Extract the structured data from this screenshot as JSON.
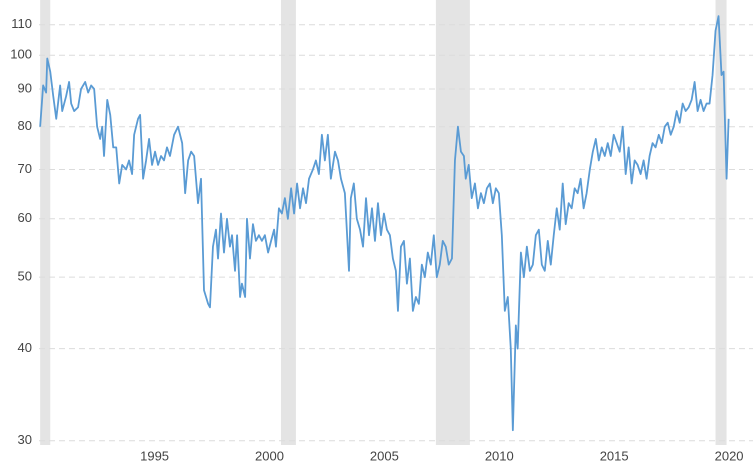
{
  "chart_data": {
    "type": "line",
    "log_scale": true,
    "grid": true,
    "color": "#5a9bd4",
    "shade_color": "#e4e4e4",
    "xlim": [
      1990.6,
      2020.8
    ],
    "ylim": [
      29.6,
      117
    ],
    "xticks": [
      1995,
      2000,
      2005,
      2010,
      2015,
      2020
    ],
    "yticks": [
      30,
      40,
      50,
      60,
      70,
      80,
      90,
      100,
      110
    ],
    "shaded": [
      [
        1990.65,
        1991.09
      ],
      [
        2001.13,
        2001.78
      ],
      [
        2007.87,
        2009.35
      ],
      [
        2020.04,
        2020.52
      ]
    ],
    "x": [
      1990.65,
      1990.78,
      1990.91,
      1990.96,
      1991.09,
      1991.22,
      1991.35,
      1991.52,
      1991.61,
      1991.78,
      1991.91,
      1992.0,
      1992.13,
      1992.3,
      1992.43,
      1992.61,
      1992.74,
      1992.87,
      1993.0,
      1993.13,
      1993.26,
      1993.35,
      1993.43,
      1993.57,
      1993.7,
      1993.83,
      1993.96,
      1994.09,
      1994.22,
      1994.39,
      1994.52,
      1994.65,
      1994.74,
      1994.91,
      1995.0,
      1995.13,
      1995.26,
      1995.39,
      1995.52,
      1995.65,
      1995.78,
      1995.91,
      1996.04,
      1996.17,
      1996.3,
      1996.48,
      1996.65,
      1996.83,
      1996.96,
      1997.09,
      1997.22,
      1997.35,
      1997.52,
      1997.65,
      1997.78,
      1997.96,
      1998.04,
      1998.17,
      1998.3,
      1998.39,
      1998.52,
      1998.65,
      1998.78,
      1998.91,
      1999.0,
      1999.13,
      1999.22,
      1999.35,
      1999.43,
      1999.57,
      1999.65,
      1999.78,
      1999.91,
      2000.04,
      2000.17,
      2000.3,
      2000.43,
      2000.57,
      2000.7,
      2000.83,
      2000.91,
      2001.04,
      2001.17,
      2001.3,
      2001.43,
      2001.57,
      2001.7,
      2001.83,
      2001.96,
      2002.09,
      2002.22,
      2002.35,
      2002.52,
      2002.65,
      2002.78,
      2002.91,
      2003.04,
      2003.17,
      2003.3,
      2003.48,
      2003.61,
      2003.74,
      2003.91,
      2004.09,
      2004.17,
      2004.3,
      2004.43,
      2004.57,
      2004.7,
      2004.83,
      2004.96,
      2005.09,
      2005.22,
      2005.35,
      2005.48,
      2005.61,
      2005.74,
      2005.87,
      2006.0,
      2006.13,
      2006.22,
      2006.35,
      2006.48,
      2006.61,
      2006.74,
      2006.87,
      2007.0,
      2007.13,
      2007.26,
      2007.39,
      2007.52,
      2007.65,
      2007.78,
      2007.91,
      2008.04,
      2008.17,
      2008.3,
      2008.43,
      2008.57,
      2008.7,
      2008.83,
      2008.96,
      2009.09,
      2009.17,
      2009.3,
      2009.43,
      2009.57,
      2009.7,
      2009.83,
      2009.96,
      2010.09,
      2010.22,
      2010.35,
      2010.48,
      2010.61,
      2010.74,
      2010.87,
      2011.0,
      2011.13,
      2011.22,
      2011.35,
      2011.43,
      2011.57,
      2011.7,
      2011.83,
      2011.96,
      2012.09,
      2012.22,
      2012.35,
      2012.48,
      2012.61,
      2012.74,
      2012.87,
      2013.0,
      2013.13,
      2013.26,
      2013.39,
      2013.52,
      2013.65,
      2013.78,
      2013.91,
      2014.04,
      2014.17,
      2014.3,
      2014.43,
      2014.57,
      2014.7,
      2014.83,
      2014.96,
      2015.09,
      2015.22,
      2015.35,
      2015.48,
      2015.61,
      2015.74,
      2015.87,
      2016.0,
      2016.13,
      2016.26,
      2016.39,
      2016.52,
      2016.65,
      2016.78,
      2016.91,
      2017.04,
      2017.17,
      2017.3,
      2017.43,
      2017.57,
      2017.7,
      2017.83,
      2017.96,
      2018.09,
      2018.22,
      2018.35,
      2018.48,
      2018.61,
      2018.74,
      2018.87,
      2019.0,
      2019.13,
      2019.26,
      2019.39,
      2019.52,
      2019.65,
      2019.78,
      2019.91,
      2020.04,
      2020.17,
      2020.3,
      2020.39,
      2020.52,
      2020.61
    ],
    "values": [
      80,
      91,
      89,
      99,
      95,
      88,
      82,
      91,
      84,
      88,
      92,
      86,
      84,
      85,
      90,
      92,
      89,
      91,
      90,
      80,
      77,
      80,
      73,
      87,
      83,
      75,
      75,
      67,
      71,
      70,
      72,
      69,
      78,
      82,
      83,
      68,
      72,
      77,
      71,
      74,
      71,
      73,
      72,
      75,
      73,
      78,
      80,
      76,
      65,
      72,
      74,
      73,
      63,
      68,
      48,
      46,
      45.5,
      55,
      58,
      53,
      61,
      54,
      60,
      55,
      57,
      51,
      57,
      47,
      49,
      47,
      60,
      53,
      59,
      56,
      57,
      56,
      57,
      54,
      56,
      58,
      55,
      62,
      61,
      64,
      60,
      66,
      61,
      67,
      62,
      66,
      63,
      68,
      70,
      72,
      69,
      78,
      72,
      78,
      68,
      74,
      72,
      68,
      65,
      51,
      64,
      67,
      60,
      58,
      55,
      64,
      57,
      62,
      56,
      63,
      57,
      61,
      58,
      57,
      53,
      51,
      45,
      55,
      56,
      49,
      53,
      45,
      47,
      46,
      52,
      50,
      54,
      52,
      57,
      50,
      52,
      56,
      55,
      52,
      53,
      72,
      80,
      74,
      73,
      68,
      71,
      64,
      67,
      62,
      65,
      63,
      66,
      67,
      63,
      66,
      65,
      57,
      45,
      47,
      40,
      31,
      43,
      40,
      54,
      50,
      55,
      51,
      52,
      57,
      58,
      52,
      51,
      56,
      52,
      57,
      62,
      58,
      67,
      59,
      63,
      62,
      66,
      65,
      68,
      62,
      65,
      70,
      74,
      77,
      72,
      75,
      73,
      76,
      73,
      78,
      76,
      74,
      80,
      69,
      75,
      67,
      72,
      71,
      69,
      72,
      68,
      73,
      76,
      75,
      78,
      76,
      80,
      81,
      78,
      80,
      84,
      81,
      86,
      84,
      85,
      87,
      92,
      84,
      87,
      84,
      86,
      86,
      94,
      108,
      113,
      94,
      95,
      68,
      82
    ]
  }
}
